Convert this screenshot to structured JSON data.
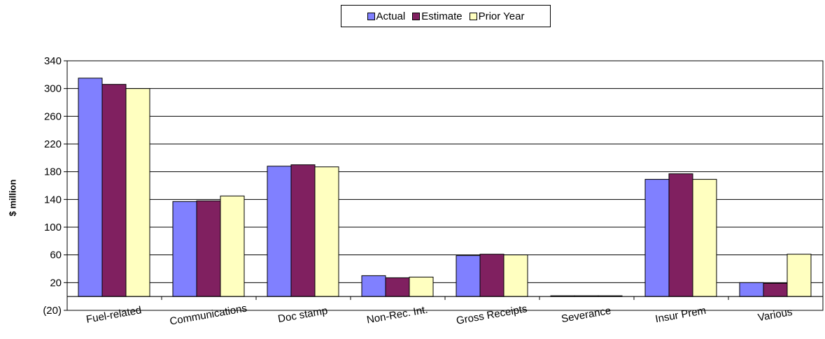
{
  "chart_data": {
    "type": "bar",
    "categories": [
      "Fuel-related",
      "Communications",
      "Doc stamp",
      "Non-Rec. Int.",
      "Gross Receipts",
      "Severance",
      "Insur Prem",
      "Various"
    ],
    "series": [
      {
        "name": "Actual",
        "color": "#8080FF",
        "values": [
          315,
          137,
          188,
          30,
          59,
          1,
          169,
          20
        ]
      },
      {
        "name": "Estimate",
        "color": "#802060",
        "values": [
          306,
          138,
          190,
          27,
          61,
          1,
          177,
          19
        ]
      },
      {
        "name": "Prior Year",
        "color": "#FFFFC0",
        "values": [
          300,
          145,
          187,
          28,
          60,
          1,
          169,
          61
        ]
      }
    ],
    "ylabel": "$ million",
    "xlabel": "",
    "ylim": [
      -20,
      340
    ],
    "yticks": [
      -20,
      20,
      60,
      100,
      140,
      180,
      220,
      260,
      300,
      340
    ],
    "ytick_labels": [
      "(20)",
      "20",
      "60",
      "100",
      "140",
      "180",
      "220",
      "260",
      "300",
      "340"
    ],
    "grid": true,
    "legend_position": "top-center"
  }
}
